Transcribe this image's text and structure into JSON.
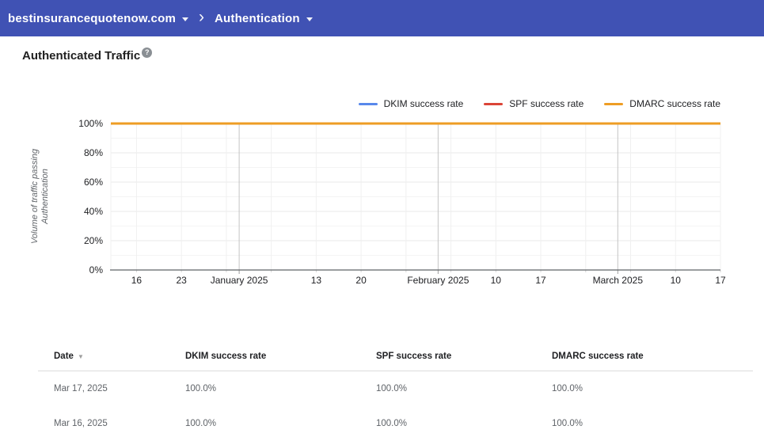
{
  "appbar": {
    "bg_color": "#4052B4",
    "domain": "bestinsurancequotenow.com",
    "section": "Authentication"
  },
  "icons": {
    "chevron_right": "›",
    "help": "?",
    "sort_desc": "▼"
  },
  "page": {
    "title": "Authenticated Traffic"
  },
  "chart_data": {
    "type": "line",
    "title": "",
    "xlabel": "",
    "ylabel": "Volume of traffic passing Authentication",
    "ylabel_lines": [
      "Volume of traffic passing",
      "Authentication"
    ],
    "ylim": [
      0,
      100
    ],
    "y_tick_suffix": "%",
    "y_ticks_percent": [
      0,
      20,
      40,
      60,
      80,
      100
    ],
    "y_minor_ticks_percent": [
      10,
      30,
      50,
      70,
      90
    ],
    "grid": true,
    "legend_position": "top-right",
    "axis_total_days": 95,
    "x_ticks": [
      {
        "day": 4,
        "label": "16",
        "kind": "week"
      },
      {
        "day": 11,
        "label": "23",
        "kind": "week"
      },
      {
        "day": 18,
        "label": "",
        "kind": "week"
      },
      {
        "day": 20,
        "label": "January 2025",
        "kind": "month"
      },
      {
        "day": 25,
        "label": "",
        "kind": "week"
      },
      {
        "day": 32,
        "label": "13",
        "kind": "week"
      },
      {
        "day": 39,
        "label": "20",
        "kind": "week"
      },
      {
        "day": 46,
        "label": "",
        "kind": "week"
      },
      {
        "day": 51,
        "label": "February 2025",
        "kind": "month"
      },
      {
        "day": 53,
        "label": "",
        "kind": "week"
      },
      {
        "day": 60,
        "label": "10",
        "kind": "week"
      },
      {
        "day": 67,
        "label": "17",
        "kind": "week"
      },
      {
        "day": 74,
        "label": "",
        "kind": "week"
      },
      {
        "day": 79,
        "label": "March 2025",
        "kind": "month"
      },
      {
        "day": 81,
        "label": "",
        "kind": "week"
      },
      {
        "day": 88,
        "label": "10",
        "kind": "week"
      },
      {
        "day": 95,
        "label": "17",
        "kind": "week"
      }
    ],
    "series": [
      {
        "name": "DKIM success rate",
        "color": "#5888EB",
        "value_percent": 100.0
      },
      {
        "name": "SPF success rate",
        "color": "#DB4437",
        "value_percent": 100.0
      },
      {
        "name": "DMARC success rate",
        "color": "#EE9D24",
        "value_percent": 100.0
      }
    ]
  },
  "table": {
    "columns": [
      "Date",
      "DKIM success rate",
      "SPF success rate",
      "DMARC success rate"
    ],
    "sorted_by": "Date",
    "sort_direction": "desc",
    "rows": [
      [
        "Mar 17, 2025",
        "100.0%",
        "100.0%",
        "100.0%"
      ],
      [
        "Mar 16, 2025",
        "100.0%",
        "100.0%",
        "100.0%"
      ]
    ]
  }
}
